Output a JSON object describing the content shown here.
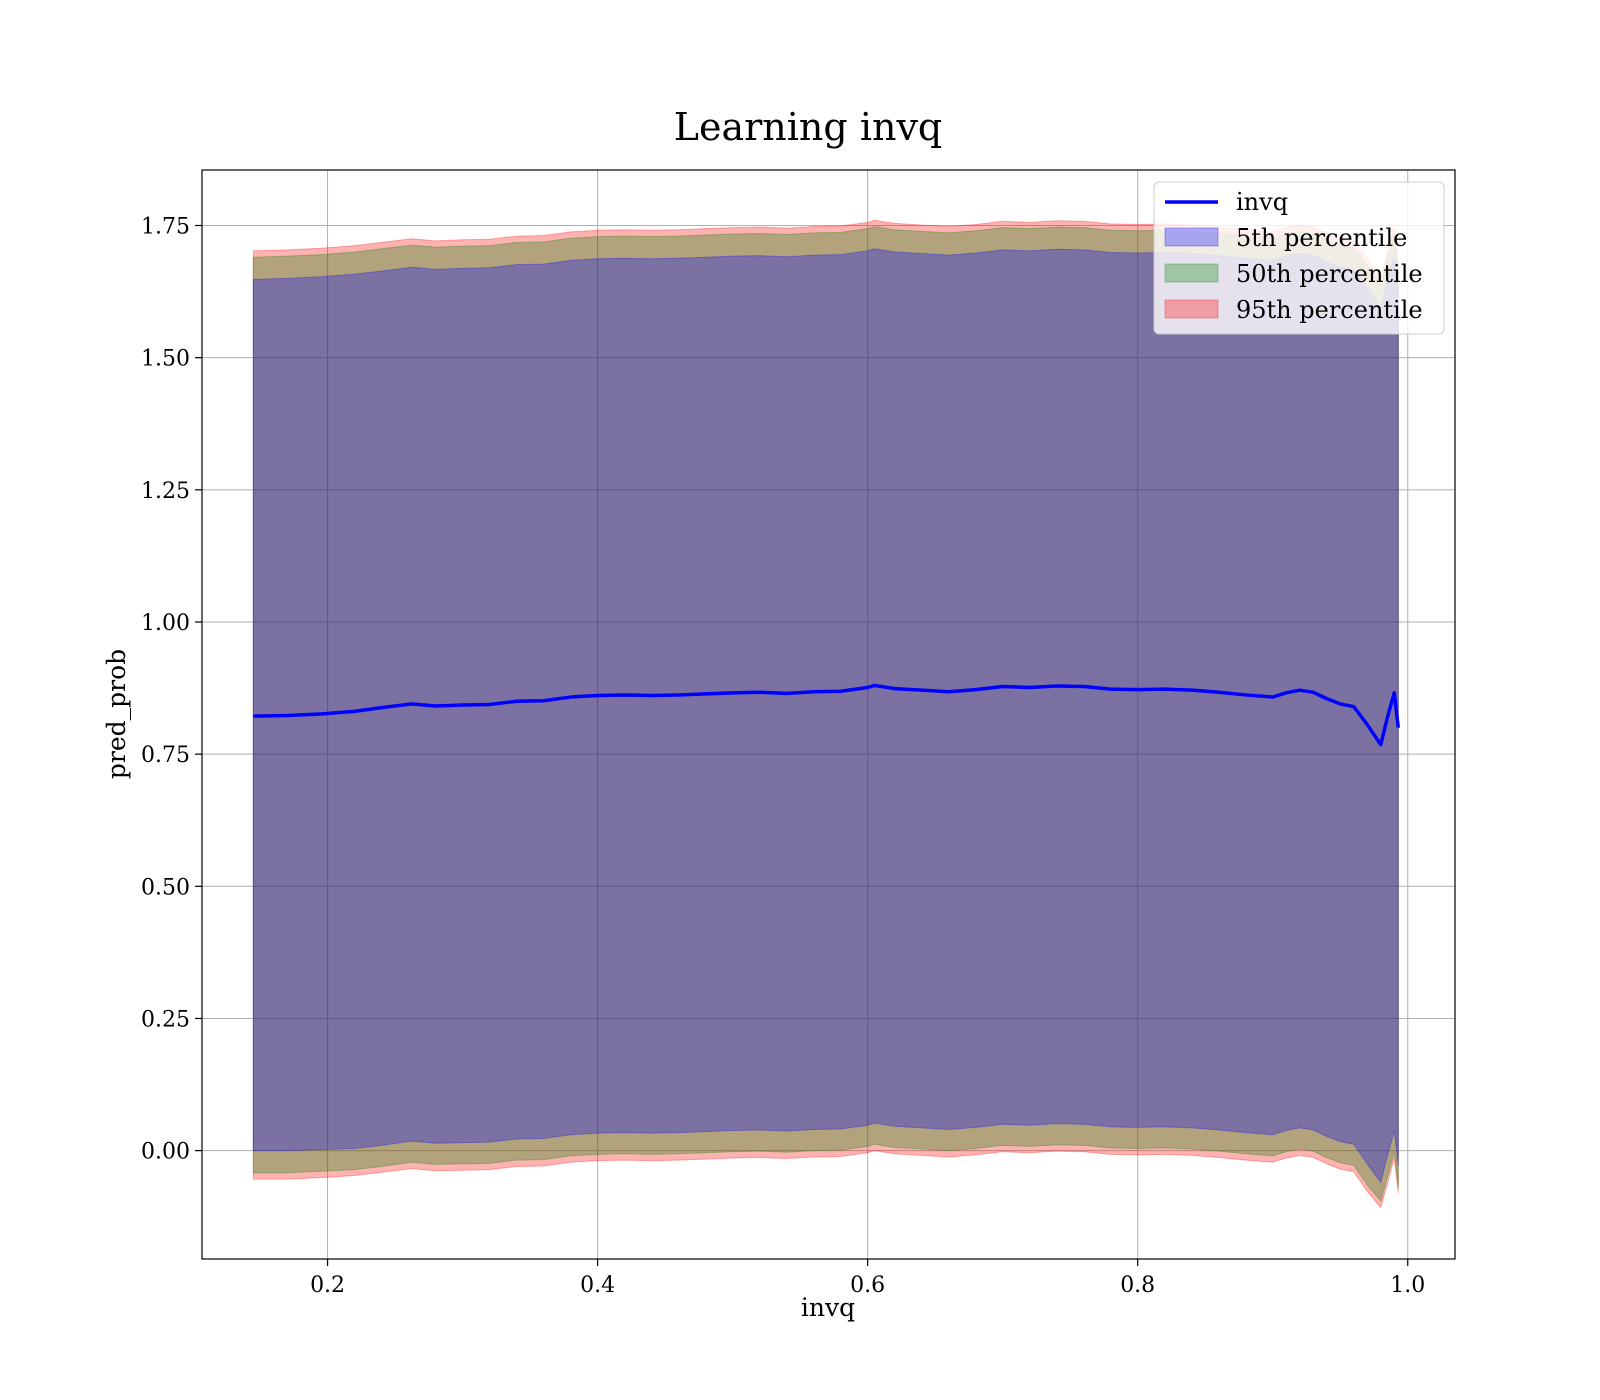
{
  "chart_data": {
    "type": "line",
    "title": "Learning invq",
    "xlabel": "invq",
    "ylabel": "pred_prob",
    "xlim": [
      0.107,
      1.035
    ],
    "ylim": [
      -0.205,
      1.855
    ],
    "xticks": [
      0.2,
      0.4,
      0.6,
      0.8,
      1.0
    ],
    "xtick_labels": [
      "0.2",
      "0.4",
      "0.6",
      "0.8",
      "1.0"
    ],
    "yticks": [
      0.0,
      0.25,
      0.5,
      0.75,
      1.0,
      1.25,
      1.5,
      1.75
    ],
    "ytick_labels": [
      "0.00",
      "0.25",
      "0.50",
      "0.75",
      "1.00",
      "1.25",
      "1.50",
      "1.75"
    ],
    "grid": true,
    "legend_position": "top-right",
    "x": [
      0.145,
      0.17,
      0.195,
      0.22,
      0.24,
      0.262,
      0.28,
      0.3,
      0.32,
      0.34,
      0.36,
      0.38,
      0.4,
      0.42,
      0.44,
      0.46,
      0.48,
      0.5,
      0.52,
      0.54,
      0.56,
      0.58,
      0.6,
      0.605,
      0.62,
      0.64,
      0.66,
      0.68,
      0.7,
      0.72,
      0.74,
      0.76,
      0.78,
      0.8,
      0.82,
      0.84,
      0.86,
      0.88,
      0.9,
      0.91,
      0.92,
      0.93,
      0.94,
      0.95,
      0.96,
      0.97,
      0.98,
      0.985,
      0.99,
      0.993
    ],
    "series": [
      {
        "name": "invq",
        "values": [
          0.822,
          0.823,
          0.826,
          0.831,
          0.838,
          0.845,
          0.841,
          0.843,
          0.844,
          0.85,
          0.851,
          0.858,
          0.861,
          0.862,
          0.861,
          0.862,
          0.864,
          0.866,
          0.867,
          0.865,
          0.868,
          0.869,
          0.876,
          0.88,
          0.874,
          0.871,
          0.868,
          0.872,
          0.878,
          0.876,
          0.879,
          0.878,
          0.873,
          0.872,
          0.873,
          0.871,
          0.867,
          0.862,
          0.858,
          0.866,
          0.871,
          0.867,
          0.855,
          0.845,
          0.84,
          0.806,
          0.768,
          0.82,
          0.866,
          0.8
        ]
      },
      {
        "name": "5th percentile",
        "lower": [
          0.0,
          0.0,
          0.002,
          0.004,
          0.01,
          0.018,
          0.014,
          0.015,
          0.016,
          0.022,
          0.023,
          0.03,
          0.033,
          0.034,
          0.033,
          0.034,
          0.036,
          0.038,
          0.039,
          0.037,
          0.04,
          0.041,
          0.048,
          0.052,
          0.046,
          0.043,
          0.04,
          0.044,
          0.05,
          0.048,
          0.051,
          0.05,
          0.045,
          0.044,
          0.045,
          0.043,
          0.039,
          0.034,
          0.03,
          0.038,
          0.043,
          0.039,
          0.027,
          0.017,
          0.012,
          -0.025,
          -0.06,
          -0.01,
          0.038,
          -0.028
        ],
        "upper": [
          1.648,
          1.65,
          1.653,
          1.658,
          1.664,
          1.671,
          1.667,
          1.669,
          1.67,
          1.676,
          1.677,
          1.684,
          1.687,
          1.688,
          1.687,
          1.688,
          1.69,
          1.692,
          1.693,
          1.691,
          1.694,
          1.695,
          1.702,
          1.706,
          1.7,
          1.697,
          1.694,
          1.698,
          1.704,
          1.702,
          1.705,
          1.704,
          1.699,
          1.698,
          1.699,
          1.697,
          1.693,
          1.688,
          1.684,
          1.692,
          1.697,
          1.693,
          1.681,
          1.671,
          1.666,
          1.632,
          1.594,
          1.646,
          1.692,
          1.626
        ]
      },
      {
        "name": "50th percentile",
        "lower": [
          -0.042,
          -0.042,
          -0.039,
          -0.036,
          -0.03,
          -0.022,
          -0.026,
          -0.025,
          -0.024,
          -0.018,
          -0.017,
          -0.01,
          -0.007,
          -0.006,
          -0.007,
          -0.006,
          -0.004,
          -0.002,
          -0.001,
          -0.003,
          0.0,
          0.001,
          0.008,
          0.012,
          0.006,
          0.003,
          0.0,
          0.004,
          0.01,
          0.008,
          0.011,
          0.01,
          0.005,
          0.004,
          0.005,
          0.003,
          -0.001,
          -0.006,
          -0.01,
          -0.002,
          0.003,
          -0.001,
          -0.013,
          -0.023,
          -0.028,
          -0.065,
          -0.095,
          -0.05,
          -0.002,
          -0.068
        ],
        "upper": [
          1.69,
          1.692,
          1.695,
          1.7,
          1.706,
          1.713,
          1.709,
          1.711,
          1.712,
          1.718,
          1.719,
          1.726,
          1.729,
          1.73,
          1.729,
          1.73,
          1.732,
          1.734,
          1.735,
          1.733,
          1.736,
          1.737,
          1.744,
          1.748,
          1.742,
          1.739,
          1.736,
          1.74,
          1.746,
          1.744,
          1.747,
          1.746,
          1.741,
          1.74,
          1.741,
          1.739,
          1.735,
          1.73,
          1.726,
          1.734,
          1.739,
          1.735,
          1.723,
          1.713,
          1.708,
          1.674,
          1.636,
          1.688,
          1.734,
          1.668
        ]
      },
      {
        "name": "95th percentile",
        "lower": [
          -0.054,
          -0.054,
          -0.051,
          -0.047,
          -0.041,
          -0.034,
          -0.038,
          -0.037,
          -0.036,
          -0.03,
          -0.029,
          -0.022,
          -0.019,
          -0.018,
          -0.019,
          -0.018,
          -0.016,
          -0.014,
          -0.013,
          -0.015,
          -0.012,
          -0.011,
          -0.004,
          0.0,
          -0.006,
          -0.009,
          -0.012,
          -0.008,
          -0.002,
          -0.004,
          -0.001,
          -0.002,
          -0.007,
          -0.008,
          -0.007,
          -0.009,
          -0.013,
          -0.018,
          -0.022,
          -0.014,
          -0.009,
          -0.013,
          -0.025,
          -0.035,
          -0.04,
          -0.077,
          -0.108,
          -0.062,
          -0.014,
          -0.08
        ],
        "upper": [
          1.702,
          1.704,
          1.707,
          1.712,
          1.718,
          1.725,
          1.721,
          1.723,
          1.724,
          1.73,
          1.731,
          1.738,
          1.741,
          1.742,
          1.741,
          1.742,
          1.744,
          1.746,
          1.747,
          1.745,
          1.748,
          1.749,
          1.756,
          1.76,
          1.754,
          1.751,
          1.748,
          1.752,
          1.758,
          1.756,
          1.759,
          1.758,
          1.753,
          1.752,
          1.753,
          1.751,
          1.747,
          1.742,
          1.738,
          1.746,
          1.751,
          1.747,
          1.735,
          1.725,
          1.72,
          1.686,
          1.648,
          1.7,
          1.746,
          1.68
        ]
      }
    ]
  },
  "colors": {
    "line": "#0000ff",
    "band_5th": "#0000ff",
    "band_50th": "#008000",
    "band_95th": "#ff0000",
    "grid": "#b0b0b0"
  },
  "legend": {
    "items": [
      {
        "label": "invq"
      },
      {
        "label": "5th percentile"
      },
      {
        "label": "50th percentile"
      },
      {
        "label": "95th percentile"
      }
    ]
  }
}
